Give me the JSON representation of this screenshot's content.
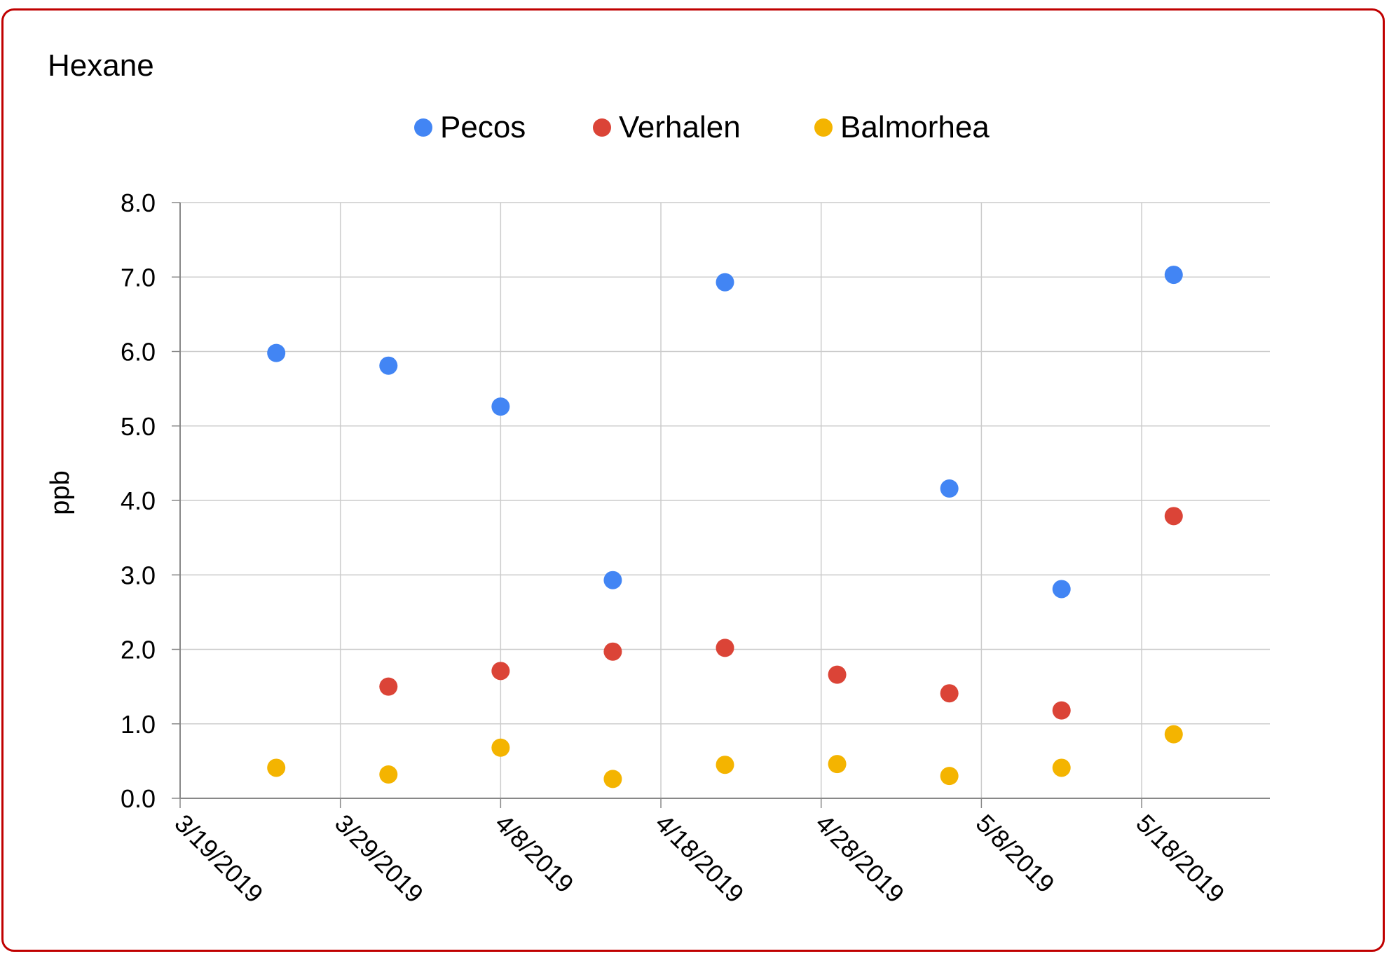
{
  "chart_data": {
    "type": "scatter",
    "title": "Hexane",
    "xlabel": "",
    "ylabel": "ppb",
    "legend_position": "top-center",
    "grid": true,
    "ylim": [
      0,
      8
    ],
    "yticks": [
      "0.0",
      "1.0",
      "2.0",
      "3.0",
      "4.0",
      "5.0",
      "6.0",
      "7.0",
      "8.0"
    ],
    "xlim": [
      "2019-03-19",
      "2019-05-26"
    ],
    "xticks": [
      "3/19/2019",
      "3/29/2019",
      "4/8/2019",
      "4/18/2019",
      "4/28/2019",
      "5/8/2019",
      "5/18/2019"
    ],
    "series": [
      {
        "name": "Pecos",
        "color": "#4285f4",
        "points": [
          {
            "x": "2019-03-25",
            "y": 5.98
          },
          {
            "x": "2019-04-01",
            "y": 5.81
          },
          {
            "x": "2019-04-08",
            "y": 5.26
          },
          {
            "x": "2019-04-15",
            "y": 2.93
          },
          {
            "x": "2019-04-22",
            "y": 6.93
          },
          {
            "x": "2019-05-06",
            "y": 4.16
          },
          {
            "x": "2019-05-13",
            "y": 2.81
          },
          {
            "x": "2019-05-20",
            "y": 7.03
          }
        ]
      },
      {
        "name": "Verhalen",
        "color": "#db4437",
        "points": [
          {
            "x": "2019-04-01",
            "y": 1.5
          },
          {
            "x": "2019-04-08",
            "y": 1.71
          },
          {
            "x": "2019-04-15",
            "y": 1.97
          },
          {
            "x": "2019-04-22",
            "y": 2.02
          },
          {
            "x": "2019-04-29",
            "y": 1.66
          },
          {
            "x": "2019-05-06",
            "y": 1.41
          },
          {
            "x": "2019-05-13",
            "y": 1.18
          },
          {
            "x": "2019-05-20",
            "y": 3.79
          }
        ]
      },
      {
        "name": "Balmorhea",
        "color": "#f4b400",
        "points": [
          {
            "x": "2019-03-25",
            "y": 0.41
          },
          {
            "x": "2019-04-01",
            "y": 0.32
          },
          {
            "x": "2019-04-08",
            "y": 0.68
          },
          {
            "x": "2019-04-15",
            "y": 0.26
          },
          {
            "x": "2019-04-22",
            "y": 0.45
          },
          {
            "x": "2019-04-29",
            "y": 0.46
          },
          {
            "x": "2019-05-06",
            "y": 0.3
          },
          {
            "x": "2019-05-13",
            "y": 0.41
          },
          {
            "x": "2019-05-20",
            "y": 0.86
          }
        ]
      }
    ]
  }
}
